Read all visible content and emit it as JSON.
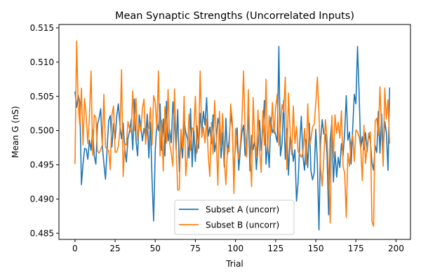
{
  "chart_data": {
    "type": "line",
    "title": "Mean Synaptic Strengths (Uncorrelated Inputs)",
    "xlabel": "Trial",
    "ylabel": "Mean G (nS)",
    "xlim": [
      -10,
      209
    ],
    "ylim": [
      0.4841,
      0.5155
    ],
    "xticks": [
      0,
      25,
      50,
      75,
      100,
      125,
      150,
      175,
      200
    ],
    "yticks": [
      0.485,
      0.49,
      0.495,
      0.5,
      0.505,
      0.51,
      0.515
    ],
    "ytick_labels": [
      "0.485",
      "0.490",
      "0.495",
      "0.500",
      "0.505",
      "0.510",
      "0.515"
    ],
    "grid": false,
    "legend_position": "lower-center",
    "series": [
      {
        "name": "Subset A (uncorr)",
        "color": "#1f77b4",
        "values": [
          0.5057,
          0.5034,
          0.5052,
          0.5041,
          0.4921,
          0.4951,
          0.4974,
          0.4973,
          0.4958,
          0.4986,
          0.4971,
          0.5001,
          0.4963,
          0.4951,
          0.5009,
          0.5018,
          0.5032,
          0.4979,
          0.4952,
          0.4929,
          0.4973,
          0.5015,
          0.5022,
          0.4976,
          0.501,
          0.4988,
          0.5021,
          0.5039,
          0.5008,
          0.4988,
          0.5011,
          0.4972,
          0.4954,
          0.4989,
          0.4999,
          0.5016,
          0.4972,
          0.5046,
          0.4986,
          0.4963,
          0.5023,
          0.5006,
          0.4985,
          0.5003,
          0.499,
          0.5024,
          0.496,
          0.5012,
          0.4929,
          0.4868,
          0.4971,
          0.5012,
          0.5,
          0.5039,
          0.4971,
          0.5017,
          0.4963,
          0.5043,
          0.4985,
          0.5001,
          0.4982,
          0.5042,
          0.5012,
          0.4972,
          0.5031,
          0.494,
          0.4987,
          0.496,
          0.5014,
          0.4998,
          0.4988,
          0.496,
          0.5032,
          0.4947,
          0.5003,
          0.4955,
          0.5007,
          0.4974,
          0.5025,
          0.4997,
          0.5028,
          0.5008,
          0.5048,
          0.4992,
          0.5005,
          0.4981,
          0.5023,
          0.4969,
          0.4983,
          0.5018,
          0.5007,
          0.496,
          0.4997,
          0.4947,
          0.5018,
          0.4965,
          0.4986,
          0.5024,
          0.5005,
          0.4931,
          0.4983,
          0.5004,
          0.4942,
          0.4972,
          0.4997,
          0.5008,
          0.4963,
          0.4986,
          0.5023,
          0.4941,
          0.4993,
          0.4972,
          0.4986,
          0.4943,
          0.4979,
          0.5015,
          0.4971,
          0.5001,
          0.5044,
          0.4951,
          0.4983,
          0.4946,
          0.5019,
          0.4997,
          0.5003,
          0.4993,
          0.4983,
          0.5123,
          0.4963,
          0.4981,
          0.5044,
          0.4958,
          0.5003,
          0.4935,
          0.4991,
          0.498,
          0.4955,
          0.4972,
          0.4897,
          0.4924,
          0.4981,
          0.5021,
          0.4962,
          0.4942,
          0.4987,
          0.4946,
          0.5011,
          0.4941,
          0.4928,
          0.4938,
          0.5002,
          0.4952,
          0.4855,
          0.4984,
          0.5016,
          0.4995,
          0.4995,
          0.4966,
          0.4877,
          0.4986,
          0.5012,
          0.4925,
          0.4969,
          0.4932,
          0.4961,
          0.4946,
          0.4981,
          0.4963,
          0.4997,
          0.5051,
          0.4986,
          0.4998,
          0.4951,
          0.5003,
          0.5053,
          0.5039,
          0.5123,
          0.5055,
          0.4974,
          0.4991,
          0.4972,
          0.4997,
          0.4969,
          0.4996,
          0.4985,
          0.4953,
          0.4942,
          0.4978,
          0.4968,
          0.5028,
          0.4967,
          0.5024,
          0.4971,
          0.5013,
          0.4997,
          0.4942,
          0.5063
        ]
      },
      {
        "name": "Subset B (uncorr)",
        "color": "#ff7f0e",
        "values": [
          0.4951,
          0.5131,
          0.5036,
          0.5008,
          0.5062,
          0.4979,
          0.5047,
          0.5022,
          0.4981,
          0.502,
          0.5087,
          0.4964,
          0.5023,
          0.5019,
          0.497,
          0.4967,
          0.4972,
          0.4979,
          0.5053,
          0.4976,
          0.4972,
          0.4971,
          0.4943,
          0.5023,
          0.5036,
          0.4968,
          0.4969,
          0.4977,
          0.5,
          0.5089,
          0.4933,
          0.4981,
          0.4979,
          0.5013,
          0.5003,
          0.4997,
          0.5058,
          0.5,
          0.5047,
          0.4986,
          0.5011,
          0.4999,
          0.5032,
          0.5046,
          0.498,
          0.5002,
          0.5003,
          0.5034,
          0.4979,
          0.5051,
          0.5042,
          0.5002,
          0.5087,
          0.4963,
          0.5015,
          0.4941,
          0.5035,
          0.4982,
          0.506,
          0.498,
          0.4967,
          0.4948,
          0.5061,
          0.4976,
          0.4913,
          0.4914,
          0.5002,
          0.4975,
          0.505,
          0.4934,
          0.4963,
          0.5024,
          0.4971,
          0.5004,
          0.5001,
          0.505,
          0.4967,
          0.4988,
          0.5087,
          0.499,
          0.5005,
          0.4982,
          0.5017,
          0.4965,
          0.4933,
          0.5012,
          0.4966,
          0.5044,
          0.4991,
          0.492,
          0.5028,
          0.4975,
          0.5025,
          0.4959,
          0.4921,
          0.4975,
          0.4969,
          0.5039,
          0.5014,
          0.4908,
          0.5003,
          0.4973,
          0.4959,
          0.498,
          0.5016,
          0.5087,
          0.4995,
          0.4961,
          0.506,
          0.4972,
          0.4918,
          0.5048,
          0.4985,
          0.4962,
          0.503,
          0.4973,
          0.4939,
          0.5029,
          0.4979,
          0.5075,
          0.4967,
          0.5022,
          0.4993,
          0.5041,
          0.4996,
          0.5033,
          0.5053,
          0.4978,
          0.5008,
          0.5038,
          0.5027,
          0.5078,
          0.4943,
          0.5055,
          0.5001,
          0.4965,
          0.5036,
          0.4981,
          0.5006,
          0.4969,
          0.4966,
          0.4961,
          0.4968,
          0.5003,
          0.495,
          0.5039,
          0.4978,
          0.4987,
          0.5005,
          0.5009,
          0.5039,
          0.5078,
          0.5025,
          0.4946,
          0.4919,
          0.4959,
          0.5016,
          0.499,
          0.4937,
          0.4865,
          0.5022,
          0.496,
          0.5023,
          0.4996,
          0.5012,
          0.4989,
          0.5029,
          0.4948,
          0.4938,
          0.4873,
          0.4967,
          0.4948,
          0.4982,
          0.4994,
          0.4955,
          0.5001,
          0.4998,
          0.4991,
          0.4975,
          0.4927,
          0.5008,
          0.4952,
          0.4977,
          0.4994,
          0.4998,
          0.4867,
          0.486,
          0.5014,
          0.5018,
          0.4993,
          0.5064,
          0.5001,
          0.4948,
          0.5062,
          0.5017,
          0.5045,
          0.4981
        ]
      }
    ]
  }
}
